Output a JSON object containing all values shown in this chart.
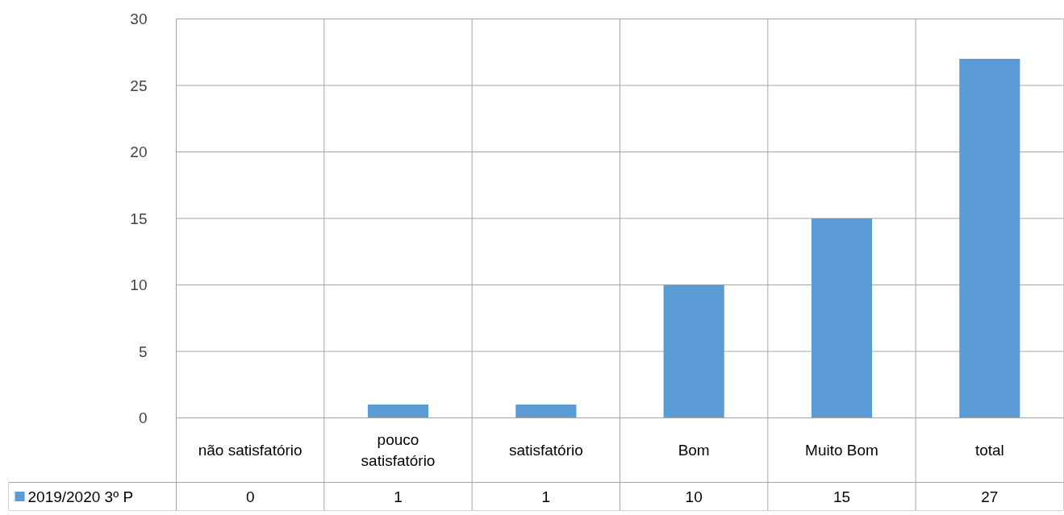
{
  "chart_data": {
    "type": "bar",
    "categories": [
      "não satisfatório",
      "pouco satisfatório",
      "satisfatório",
      "Bom",
      "Muito Bom",
      "total"
    ],
    "series": [
      {
        "name": "2019/2020 3º P",
        "color": "#5b9bd5",
        "values": [
          0,
          1,
          1,
          10,
          15,
          27
        ]
      }
    ],
    "ylim": [
      0,
      30
    ],
    "yticks": [
      0,
      5,
      10,
      15,
      20,
      25,
      30
    ],
    "grid": "y",
    "legend": "bottom",
    "data_labels": true
  }
}
